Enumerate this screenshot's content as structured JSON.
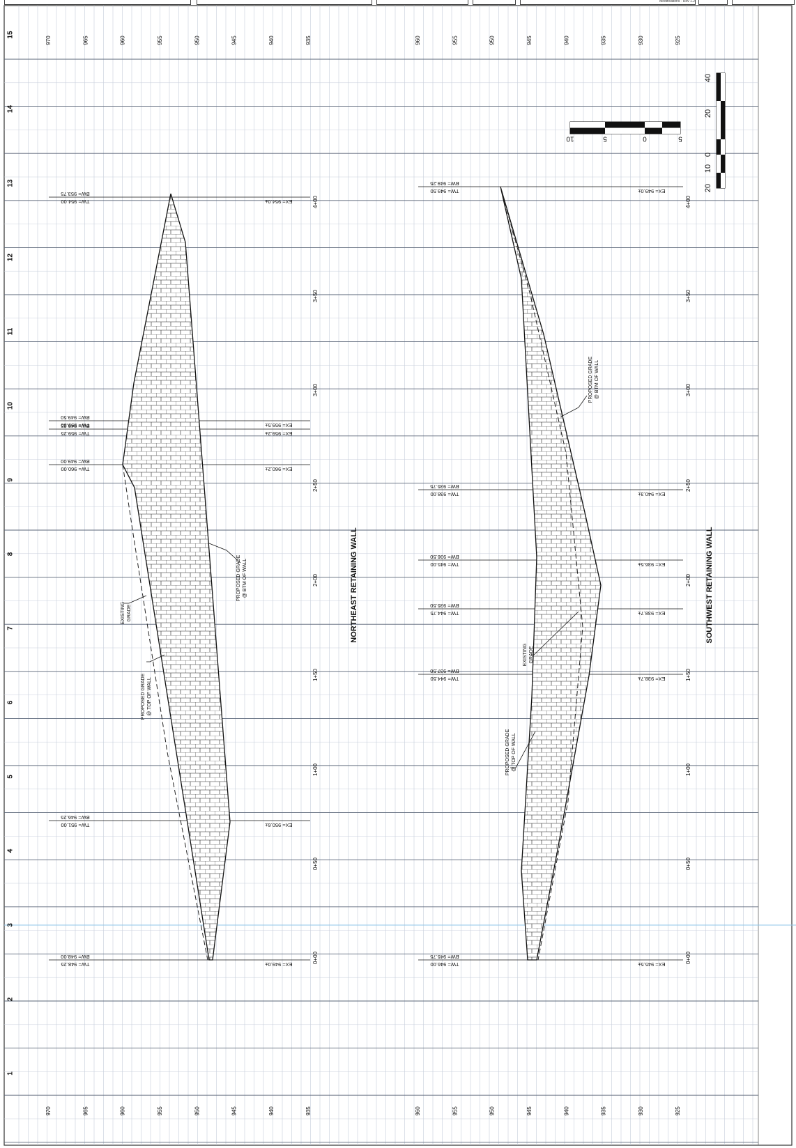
{
  "title_block": {
    "note": "Modifications · Rev 1.2"
  },
  "sheet_row_labels": [
    "15",
    "14",
    "13",
    "12",
    "11",
    "10",
    "9",
    "8",
    "7",
    "6",
    "5",
    "4",
    "3",
    "2",
    "1"
  ],
  "northeast": {
    "title": "NORTHEAST RETAINING WALL",
    "elev_labels": [
      "970",
      "965",
      "960",
      "955",
      "950",
      "945",
      "940",
      "935"
    ],
    "stations": [
      "4+00",
      "3+50",
      "3+00",
      "2+50",
      "2+00",
      "1+50",
      "1+00",
      "0+50",
      "0+00"
    ],
    "callouts": [
      {
        "tw": "TW= 954.00",
        "bw": "BW= 953.75",
        "ex": "EX= 954.0±"
      },
      {
        "tw": "TW= 959.50",
        "bw": "BW= 949.50",
        "ex": "EX= 959.5±"
      },
      {
        "tw": "TW= 959.25",
        "bw": "BW= 949.25",
        "ex": "EX= 959.2±"
      },
      {
        "tw": "TW= 960.00",
        "bw": "BW= 949.00",
        "ex": "EX= 960.2±"
      },
      {
        "tw": "TW= 951.00",
        "bw": "BW= 946.25",
        "ex": "EX= 950.6±"
      },
      {
        "tw": "TW= 948.25",
        "bw": "BW= 948.00",
        "ex": "EX= 949.0±"
      }
    ],
    "notes": {
      "proposed_btm_1": "PROPOSED GRADE",
      "proposed_btm_2": "@ BTM OF WALL",
      "existing_1": "EXISTING",
      "existing_2": "GRADE",
      "proposed_top_1": "PROPOSED GRADE",
      "proposed_top_2": "@ TOP OF WALL"
    }
  },
  "southwest": {
    "title": "SOUTHWEST RETAINING WALL",
    "elev_labels": [
      "960",
      "955",
      "950",
      "945",
      "940",
      "935",
      "930",
      "925"
    ],
    "stations": [
      "4+00",
      "3+50",
      "3+00",
      "2+50",
      "2+00",
      "1+50",
      "1+00",
      "0+50",
      "0+00"
    ],
    "callouts": [
      {
        "tw": "TW= 949.50",
        "bw": "BW= 949.25",
        "ex": "EX= 949.0±"
      },
      {
        "tw": "TW= 938.00",
        "bw": "BW= 935.75",
        "ex": "EX= 940.3±"
      },
      {
        "tw": "TW= 945.00",
        "bw": "BW= 936.50",
        "ex": "EX= 936.5±"
      },
      {
        "tw": "TW= 944.75",
        "bw": "BW= 935.50",
        "ex": "EX= 938.7±"
      },
      {
        "tw": "TW= 944.50",
        "bw": "BW= 937.50",
        "ex": "EX= 938.7±"
      },
      {
        "tw": "TW= 946.00",
        "bw": "BW= 945.75",
        "ex": "EX= 945.5±"
      }
    ],
    "notes": {
      "proposed_btm_1": "PROPOSED GRADE",
      "proposed_btm_2": "@ BTM OF WALL",
      "existing_1": "EXISTING",
      "existing_2": "GRADE",
      "proposed_top_1": "PROPOSED GRADE",
      "proposed_top_2": "@ TOP OF WALL"
    }
  },
  "scales": {
    "horizontal": [
      "10",
      "5",
      "0",
      "5"
    ],
    "vertical": [
      "40",
      "20",
      "0",
      "10",
      "20"
    ]
  }
}
